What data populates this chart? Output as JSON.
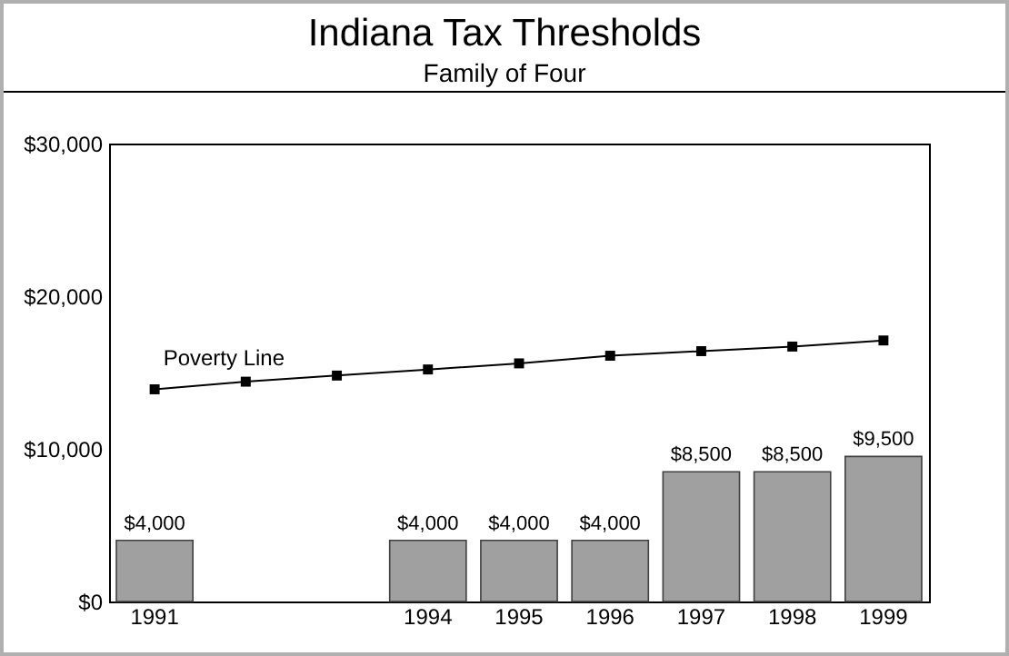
{
  "chart_data": {
    "type": "bar",
    "title": "Indiana Tax Thresholds",
    "subtitle": "Family of Four",
    "categories": [
      "1991",
      null,
      null,
      "1994",
      "1995",
      "1996",
      "1997",
      "1998",
      "1999"
    ],
    "series": [
      {
        "color": "#a0a0a0",
        "values": [
          4000,
          null,
          null,
          4000,
          4000,
          4000,
          8500,
          8500,
          9500
        ],
        "value_labels": [
          "$4,000",
          null,
          null,
          "$4,000",
          "$4,000",
          "$4,000",
          "$8,500",
          "$8,500",
          "$9,500"
        ]
      },
      {
        "type": "line",
        "name": "Poverty Line",
        "color": "#000000",
        "marker": "square",
        "values": [
          13900,
          14400,
          14800,
          15200,
          15600,
          16100,
          16400,
          16700,
          17100
        ]
      }
    ],
    "ylim": [
      0,
      30000
    ],
    "yticks": [
      {
        "value": 0,
        "label": "$0"
      },
      {
        "value": 10000,
        "label": "$10,000"
      },
      {
        "value": 20000,
        "label": "$20,000"
      },
      {
        "value": 30000,
        "label": "$30,000"
      }
    ],
    "grid": false
  }
}
